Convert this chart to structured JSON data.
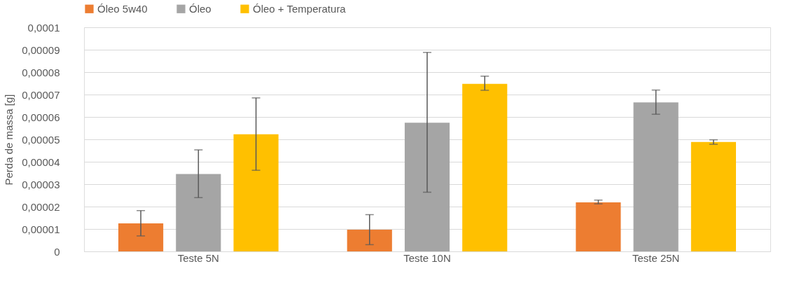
{
  "chart_data": {
    "type": "bar",
    "ylabel": "Perda de massa [g]",
    "categories": [
      "Teste 5N",
      "Teste 10N",
      "Teste 25N"
    ],
    "series": [
      {
        "name": "Óleo 5w40",
        "color": "#ed7d31",
        "values": [
          1.25e-05,
          9.7e-06,
          2.19e-05
        ],
        "errors": [
          [
            6.9e-06,
            1.82e-05
          ],
          [
            3e-06,
            1.64e-05
          ],
          [
            2.12e-05,
            2.29e-05
          ]
        ]
      },
      {
        "name": "Óleo",
        "color": "#a5a5a5",
        "values": [
          3.45e-05,
          5.74e-05,
          6.65e-05
        ],
        "errors": [
          [
            2.4e-05,
            4.53e-05
          ],
          [
            2.64e-05,
            8.88e-05
          ],
          [
            6.12e-05,
            7.2e-05
          ]
        ]
      },
      {
        "name": "Óleo + Temperatura",
        "color": "#ffc000",
        "values": [
          5.23e-05,
          7.48e-05,
          4.88e-05
        ],
        "errors": [
          [
            3.62e-05,
            6.85e-05
          ],
          [
            7.19e-05,
            7.82e-05
          ],
          [
            4.78e-05,
            4.98e-05
          ]
        ]
      }
    ],
    "ylim": [
      0,
      0.0001
    ],
    "yticks": [
      0,
      {
        "value": 1e-05,
        "label": "0,00001"
      },
      {
        "value": 2e-05,
        "label": "0,00002"
      },
      {
        "value": 3e-05,
        "label": "0,00003"
      },
      {
        "value": 4e-05,
        "label": "0,00004"
      },
      {
        "value": 5e-05,
        "label": "0,00005"
      },
      {
        "value": 6e-05,
        "label": "0,00006"
      },
      {
        "value": 7e-05,
        "label": "0,00007"
      },
      {
        "value": 8e-05,
        "label": "0,00008"
      },
      {
        "value": 9e-05,
        "label": "0,00009"
      },
      {
        "value": 0.0001,
        "label": "0,0001"
      }
    ],
    "grid": "y",
    "legend": "top"
  }
}
